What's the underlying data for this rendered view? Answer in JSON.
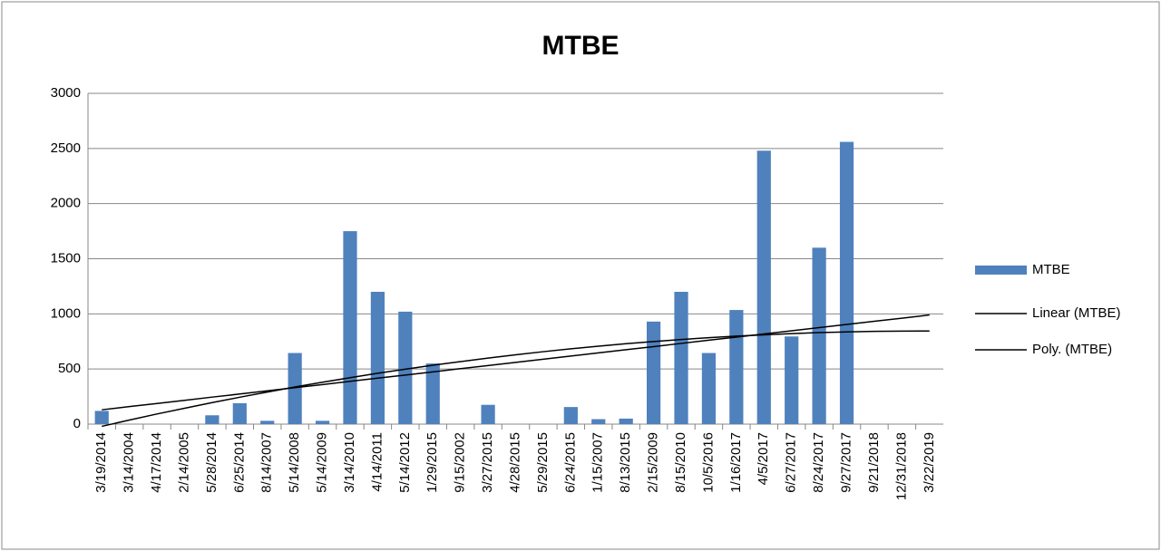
{
  "chart_data": {
    "type": "bar",
    "title": "MTBE",
    "categories": [
      "3/19/2014",
      "3/14/2004",
      "4/17/2014",
      "2/14/2005",
      "5/28/2014",
      "6/25/2014",
      "8/14/2007",
      "5/14/2008",
      "5/14/2009",
      "3/14/2010",
      "4/14/2011",
      "5/14/2012",
      "1/29/2015",
      "9/15/2002",
      "3/27/2015",
      "4/28/2015",
      "5/29/2015",
      "6/24/2015",
      "1/15/2007",
      "8/13/2015",
      "2/15/2009",
      "8/15/2010",
      "10/5/2016",
      "1/16/2017",
      "4/5/2017",
      "6/27/2017",
      "8/24/2017",
      "9/27/2017",
      "9/21/2018",
      "12/31/2018",
      "3/22/2019"
    ],
    "series": [
      {
        "name": "MTBE",
        "type": "bar",
        "color": "#4f81bd",
        "values": [
          120,
          null,
          null,
          null,
          80,
          190,
          30,
          645,
          30,
          1750,
          1200,
          1020,
          550,
          null,
          175,
          null,
          null,
          155,
          45,
          50,
          930,
          1200,
          645,
          1035,
          2480,
          795,
          1600,
          2560,
          null,
          null,
          null
        ]
      },
      {
        "name": "Linear (MTBE)",
        "type": "line",
        "color": "#000000",
        "values": [
          130,
          159,
          187,
          216,
          245,
          273,
          302,
          331,
          359,
          388,
          417,
          445,
          474,
          503,
          531,
          560,
          589,
          617,
          646,
          675,
          703,
          732,
          761,
          789,
          818,
          847,
          875,
          904,
          933,
          961,
          990
        ]
      },
      {
        "name": "Poly. (MTBE)",
        "type": "line",
        "color": "#000000",
        "values": [
          -20,
          37,
          92,
          144,
          195,
          244,
          291,
          337,
          380,
          421,
          461,
          498,
          534,
          567,
          599,
          629,
          657,
          683,
          707,
          729,
          749,
          767,
          784,
          798,
          810,
          821,
          830,
          836,
          841,
          844,
          845
        ]
      }
    ],
    "ylim": [
      0,
      3000
    ],
    "yticks": [
      0,
      500,
      1000,
      1500,
      2000,
      2500,
      3000
    ],
    "grid": true,
    "legend": "right"
  }
}
